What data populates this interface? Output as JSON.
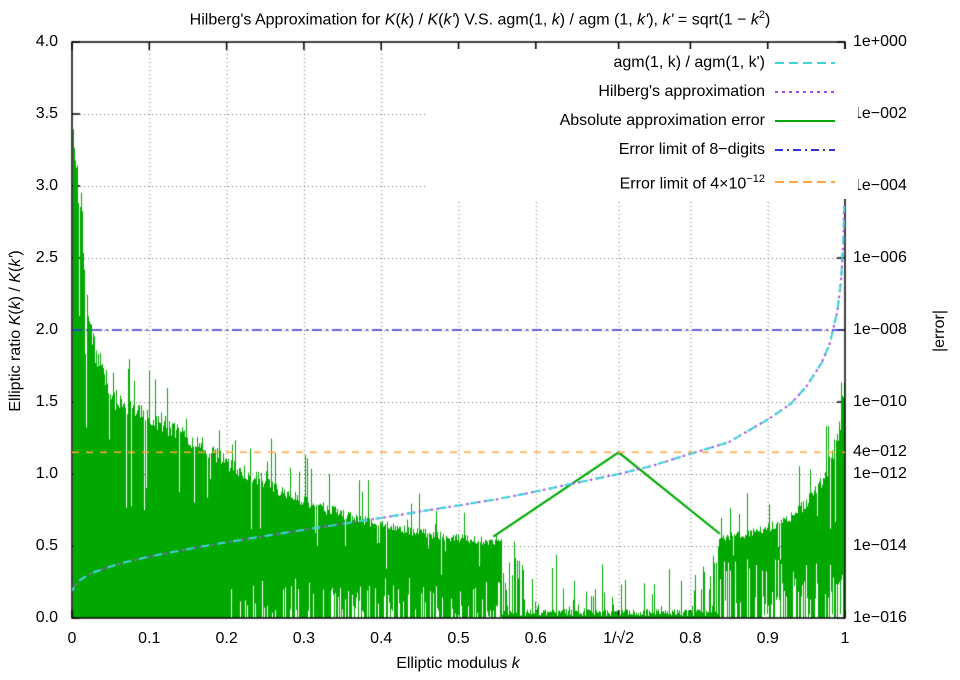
{
  "title": {
    "segments": [
      {
        "t": "Hilberg's Approximation for "
      },
      {
        "t": "K",
        "i": 1
      },
      {
        "t": "("
      },
      {
        "t": "k",
        "i": 1
      },
      {
        "t": ") / "
      },
      {
        "t": "K",
        "i": 1
      },
      {
        "t": "("
      },
      {
        "t": "k'",
        "i": 1
      },
      {
        "t": ") V.S. agm(1, "
      },
      {
        "t": "k",
        "i": 1
      },
      {
        "t": ") / agm (1, "
      },
      {
        "t": "k'",
        "i": 1
      },
      {
        "t": "), "
      },
      {
        "t": "k'",
        "i": 1
      },
      {
        "t": " = sqrt(1 − "
      },
      {
        "t": "k",
        "i": 1
      },
      {
        "t": "2",
        "sup": 1
      },
      {
        "t": ")"
      }
    ]
  },
  "axes": {
    "x": {
      "label_segments": [
        {
          "t": "Elliptic modulus "
        },
        {
          "t": "k",
          "i": 1
        }
      ],
      "range": [
        0,
        1
      ],
      "ticks": [
        {
          "v": 0,
          "label": "0"
        },
        {
          "v": 0.1,
          "label": "0.1"
        },
        {
          "v": 0.2,
          "label": "0.2"
        },
        {
          "v": 0.3,
          "label": "0.3"
        },
        {
          "v": 0.4,
          "label": "0.4"
        },
        {
          "v": 0.5,
          "label": "0.5"
        },
        {
          "v": 0.6,
          "label": "0.6"
        },
        {
          "v": 0.70710678,
          "label": "1/√2"
        },
        {
          "v": 0.8,
          "label": "0.8"
        },
        {
          "v": 0.9,
          "label": "0.9"
        },
        {
          "v": 1,
          "label": "1"
        }
      ]
    },
    "y_left": {
      "label_segments": [
        {
          "t": "Elliptic ratio "
        },
        {
          "t": "K",
          "i": 1
        },
        {
          "t": "("
        },
        {
          "t": "k",
          "i": 1
        },
        {
          "t": ") / "
        },
        {
          "t": "K",
          "i": 1
        },
        {
          "t": "("
        },
        {
          "t": "k'",
          "i": 1
        },
        {
          "t": ")"
        }
      ],
      "range": [
        0,
        4
      ],
      "ticks": [
        {
          "v": 0.0,
          "label": "0.0"
        },
        {
          "v": 0.5,
          "label": "0.5"
        },
        {
          "v": 1.0,
          "label": "1.0"
        },
        {
          "v": 1.5,
          "label": "1.5"
        },
        {
          "v": 2.0,
          "label": "2.0"
        },
        {
          "v": 2.5,
          "label": "2.5"
        },
        {
          "v": 3.0,
          "label": "3.0"
        },
        {
          "v": 3.5,
          "label": "3.5"
        },
        {
          "v": 4.0,
          "label": "4.0"
        }
      ]
    },
    "y_right": {
      "label": "|error|",
      "range_log10": [
        -16,
        0
      ],
      "ticks": [
        {
          "log": 0,
          "label": "1e+000"
        },
        {
          "log": -2,
          "label": "1e−002"
        },
        {
          "log": -4,
          "label": "1e−004"
        },
        {
          "log": -6,
          "label": "1e−006"
        },
        {
          "log": -8,
          "label": "1e−008"
        },
        {
          "log": -10,
          "label": "1e−010"
        },
        {
          "log": -11.39794,
          "label": "4e−012"
        },
        {
          "log": -12,
          "label": "1e−012"
        },
        {
          "log": -14,
          "label": "1e−014"
        },
        {
          "log": -16,
          "label": "1e−016"
        }
      ]
    }
  },
  "legend": {
    "entries": [
      {
        "label_segments": [
          {
            "t": "agm(1, k) / agm(1, k')"
          }
        ],
        "color": "#3cd6d6",
        "style": "dashed"
      },
      {
        "label_segments": [
          {
            "t": "Hilberg's approximation"
          }
        ],
        "color": "#a64ce6",
        "style": "dotted"
      },
      {
        "label_segments": [
          {
            "t": "Absolute approximation error"
          }
        ],
        "color": "#00a800",
        "style": "solid"
      },
      {
        "label_segments": [
          {
            "t": "Error limit of 8−digits"
          }
        ],
        "color": "#3434d8",
        "style": "dashdot"
      },
      {
        "label_segments": [
          {
            "t": "Error limit of 4×10"
          },
          {
            "t": "−12",
            "sup": 1
          }
        ],
        "color": "#ffa63c",
        "style": "dashed"
      }
    ]
  },
  "chart_data": {
    "type": "line",
    "grid": true,
    "x_range": [
      0,
      1
    ],
    "y_left_range": [
      0,
      4
    ],
    "y_right_log10_range": [
      -16,
      0
    ],
    "ratio_points": [
      [
        0.001,
        0.189
      ],
      [
        0.002,
        0.207
      ],
      [
        0.004,
        0.227
      ],
      [
        0.007,
        0.248
      ],
      [
        0.01,
        0.262
      ],
      [
        0.015,
        0.279
      ],
      [
        0.02,
        0.297
      ],
      [
        0.03,
        0.321
      ],
      [
        0.05,
        0.358
      ],
      [
        0.07,
        0.389
      ],
      [
        0.1,
        0.426
      ],
      [
        0.13,
        0.458
      ],
      [
        0.16,
        0.489
      ],
      [
        0.2,
        0.526
      ],
      [
        0.25,
        0.57
      ],
      [
        0.3,
        0.612
      ],
      [
        0.35,
        0.654
      ],
      [
        0.4,
        0.695
      ],
      [
        0.45,
        0.739
      ],
      [
        0.5,
        0.782
      ],
      [
        0.55,
        0.825
      ],
      [
        0.6,
        0.878
      ],
      [
        0.65,
        0.936
      ],
      [
        0.70710678,
        1.0
      ],
      [
        0.75,
        1.056
      ],
      [
        0.8,
        1.14
      ],
      [
        0.85,
        1.222
      ],
      [
        0.9,
        1.378
      ],
      [
        0.93,
        1.488
      ],
      [
        0.95,
        1.608
      ],
      [
        0.97,
        1.774
      ],
      [
        0.98,
        1.901
      ],
      [
        0.99,
        2.126
      ],
      [
        0.995,
        2.347
      ],
      [
        0.998,
        2.64
      ],
      [
        0.999,
        2.861
      ]
    ],
    "series": [
      {
        "name": "agm(1, k) / agm(1, k')",
        "axis": "left",
        "type": "line",
        "color": "#3cd6d6",
        "style": "dashed",
        "points_from": "ratio_points"
      },
      {
        "name": "Hilberg's approximation",
        "axis": "left",
        "type": "line",
        "color": "#a64ce6",
        "style": "dotted",
        "points_from": "ratio_points",
        "note": "visually coincident with agm curve (difference below 4e-12)"
      },
      {
        "name": "Absolute approximation error",
        "axis": "right-log",
        "type": "noisy-line",
        "color": "#00a800",
        "noise_floor_log": -16,
        "left_noise_envelope_log": [
          [
            0.0012,
            -1.8
          ],
          [
            0.003,
            -2.0
          ],
          [
            0.006,
            -2.68
          ],
          [
            0.009,
            -3.8
          ],
          [
            0.013,
            -4.6
          ],
          [
            0.017,
            -6.0
          ],
          [
            0.023,
            -7.6
          ],
          [
            0.03,
            -8.2
          ],
          [
            0.04,
            -8.8
          ],
          [
            0.05,
            -9.44
          ],
          [
            0.06,
            -9.76
          ],
          [
            0.08,
            -10.0
          ],
          [
            0.1,
            -10.12
          ],
          [
            0.114,
            -10.24
          ],
          [
            0.14,
            -10.64
          ],
          [
            0.166,
            -10.92
          ],
          [
            0.2,
            -11.48
          ],
          [
            0.23,
            -11.8
          ],
          [
            0.295,
            -12.56
          ],
          [
            0.36,
            -13.04
          ],
          [
            0.424,
            -13.4
          ],
          [
            0.489,
            -13.64
          ],
          [
            0.5555,
            -13.8
          ]
        ],
        "right_noise_envelope_log": [
          [
            0.838,
            -13.66
          ],
          [
            0.87,
            -13.56
          ],
          [
            0.9,
            -13.36
          ],
          [
            0.93,
            -13.04
          ],
          [
            0.95,
            -12.64
          ],
          [
            0.965,
            -12.2
          ],
          [
            0.975,
            -11.8
          ],
          [
            0.985,
            -11.12
          ],
          [
            0.99,
            -10.8
          ],
          [
            0.994,
            -10.2
          ],
          [
            0.997,
            -9.5
          ],
          [
            0.9985,
            -8.9
          ],
          [
            0.9995,
            -8.3
          ]
        ],
        "smooth_peak_log": [
          [
            0.545,
            -13.74
          ],
          [
            0.70710678,
            -11.39794
          ],
          [
            0.838,
            -13.66
          ]
        ],
        "peak_value": 4e-12,
        "peak_at_k": 0.70710678
      },
      {
        "name": "Error limit of 8-digits",
        "axis": "right-log",
        "type": "hline",
        "color": "#3434d8",
        "style": "dashdot",
        "value": 1e-08
      },
      {
        "name": "Error limit of 4×10^-12",
        "axis": "right-log",
        "type": "hline",
        "color": "#ffa63c",
        "style": "dashed",
        "value": 4e-12
      }
    ]
  },
  "colors": {
    "background": "#ffffff",
    "border": "#000000",
    "grid": "#555555",
    "agm": "#3cd6d6",
    "hilberg": "#a64ce6",
    "error": "#00a800",
    "limit8": "#3434d8",
    "limit4e12": "#ffa63c"
  }
}
